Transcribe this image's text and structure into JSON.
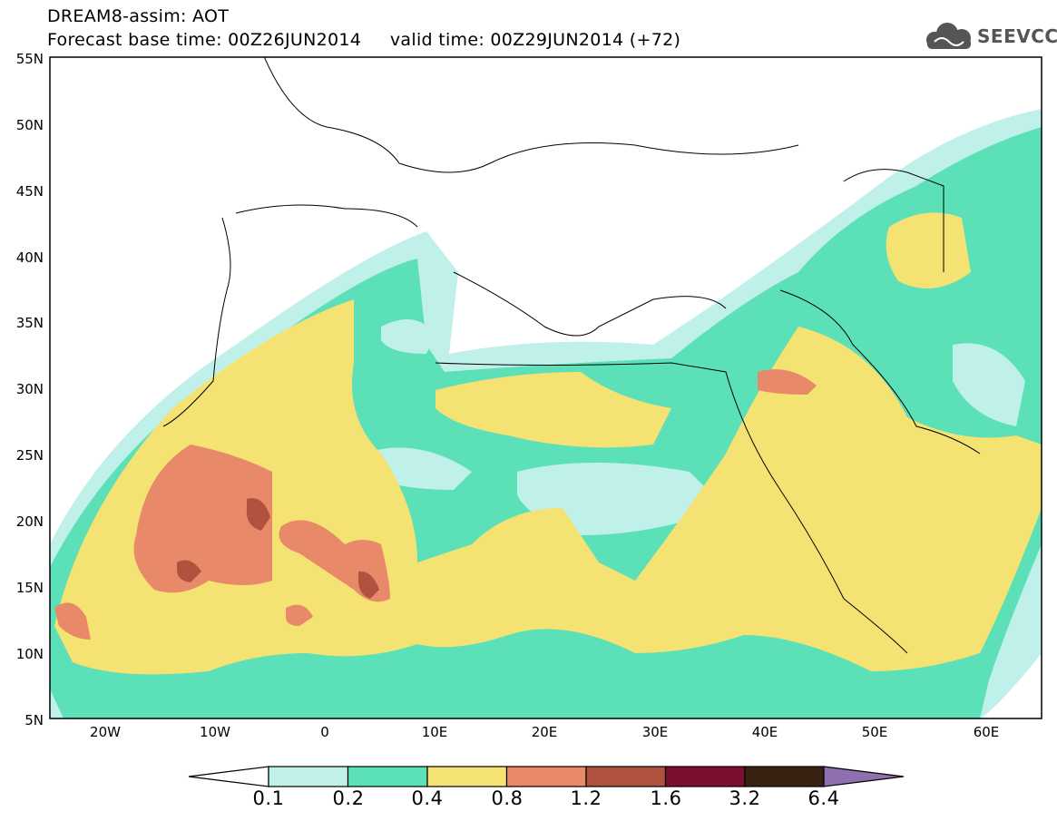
{
  "header": {
    "line1": "DREAM8-assim: AOT",
    "line2": "Forecast base time: 00Z26JUN2014     valid time: 00Z29JUN2014 (+72)",
    "logo_text": "SEEVCCC",
    "logo_icon": "cloud-logo-icon"
  },
  "map": {
    "lat_labels": [
      "55N",
      "50N",
      "45N",
      "40N",
      "35N",
      "30N",
      "25N",
      "20N",
      "15N",
      "10N",
      "5N"
    ],
    "lon_labels": [
      "20W",
      "10W",
      "0",
      "10E",
      "20E",
      "30E",
      "40E",
      "50E",
      "60E"
    ],
    "lat_range": [
      5,
      55
    ],
    "lon_range": [
      -25,
      65
    ]
  },
  "colorbar": {
    "levels": [
      "0.1",
      "0.2",
      "0.4",
      "0.8",
      "1.2",
      "1.6",
      "3.2",
      "6.4"
    ],
    "colors": [
      "#ffffff",
      "#c0f0ea",
      "#5ce0b8",
      "#f4e372",
      "#e8896a",
      "#b0523e",
      "#7a1030",
      "#3a2212",
      "#8f6fae"
    ]
  }
}
